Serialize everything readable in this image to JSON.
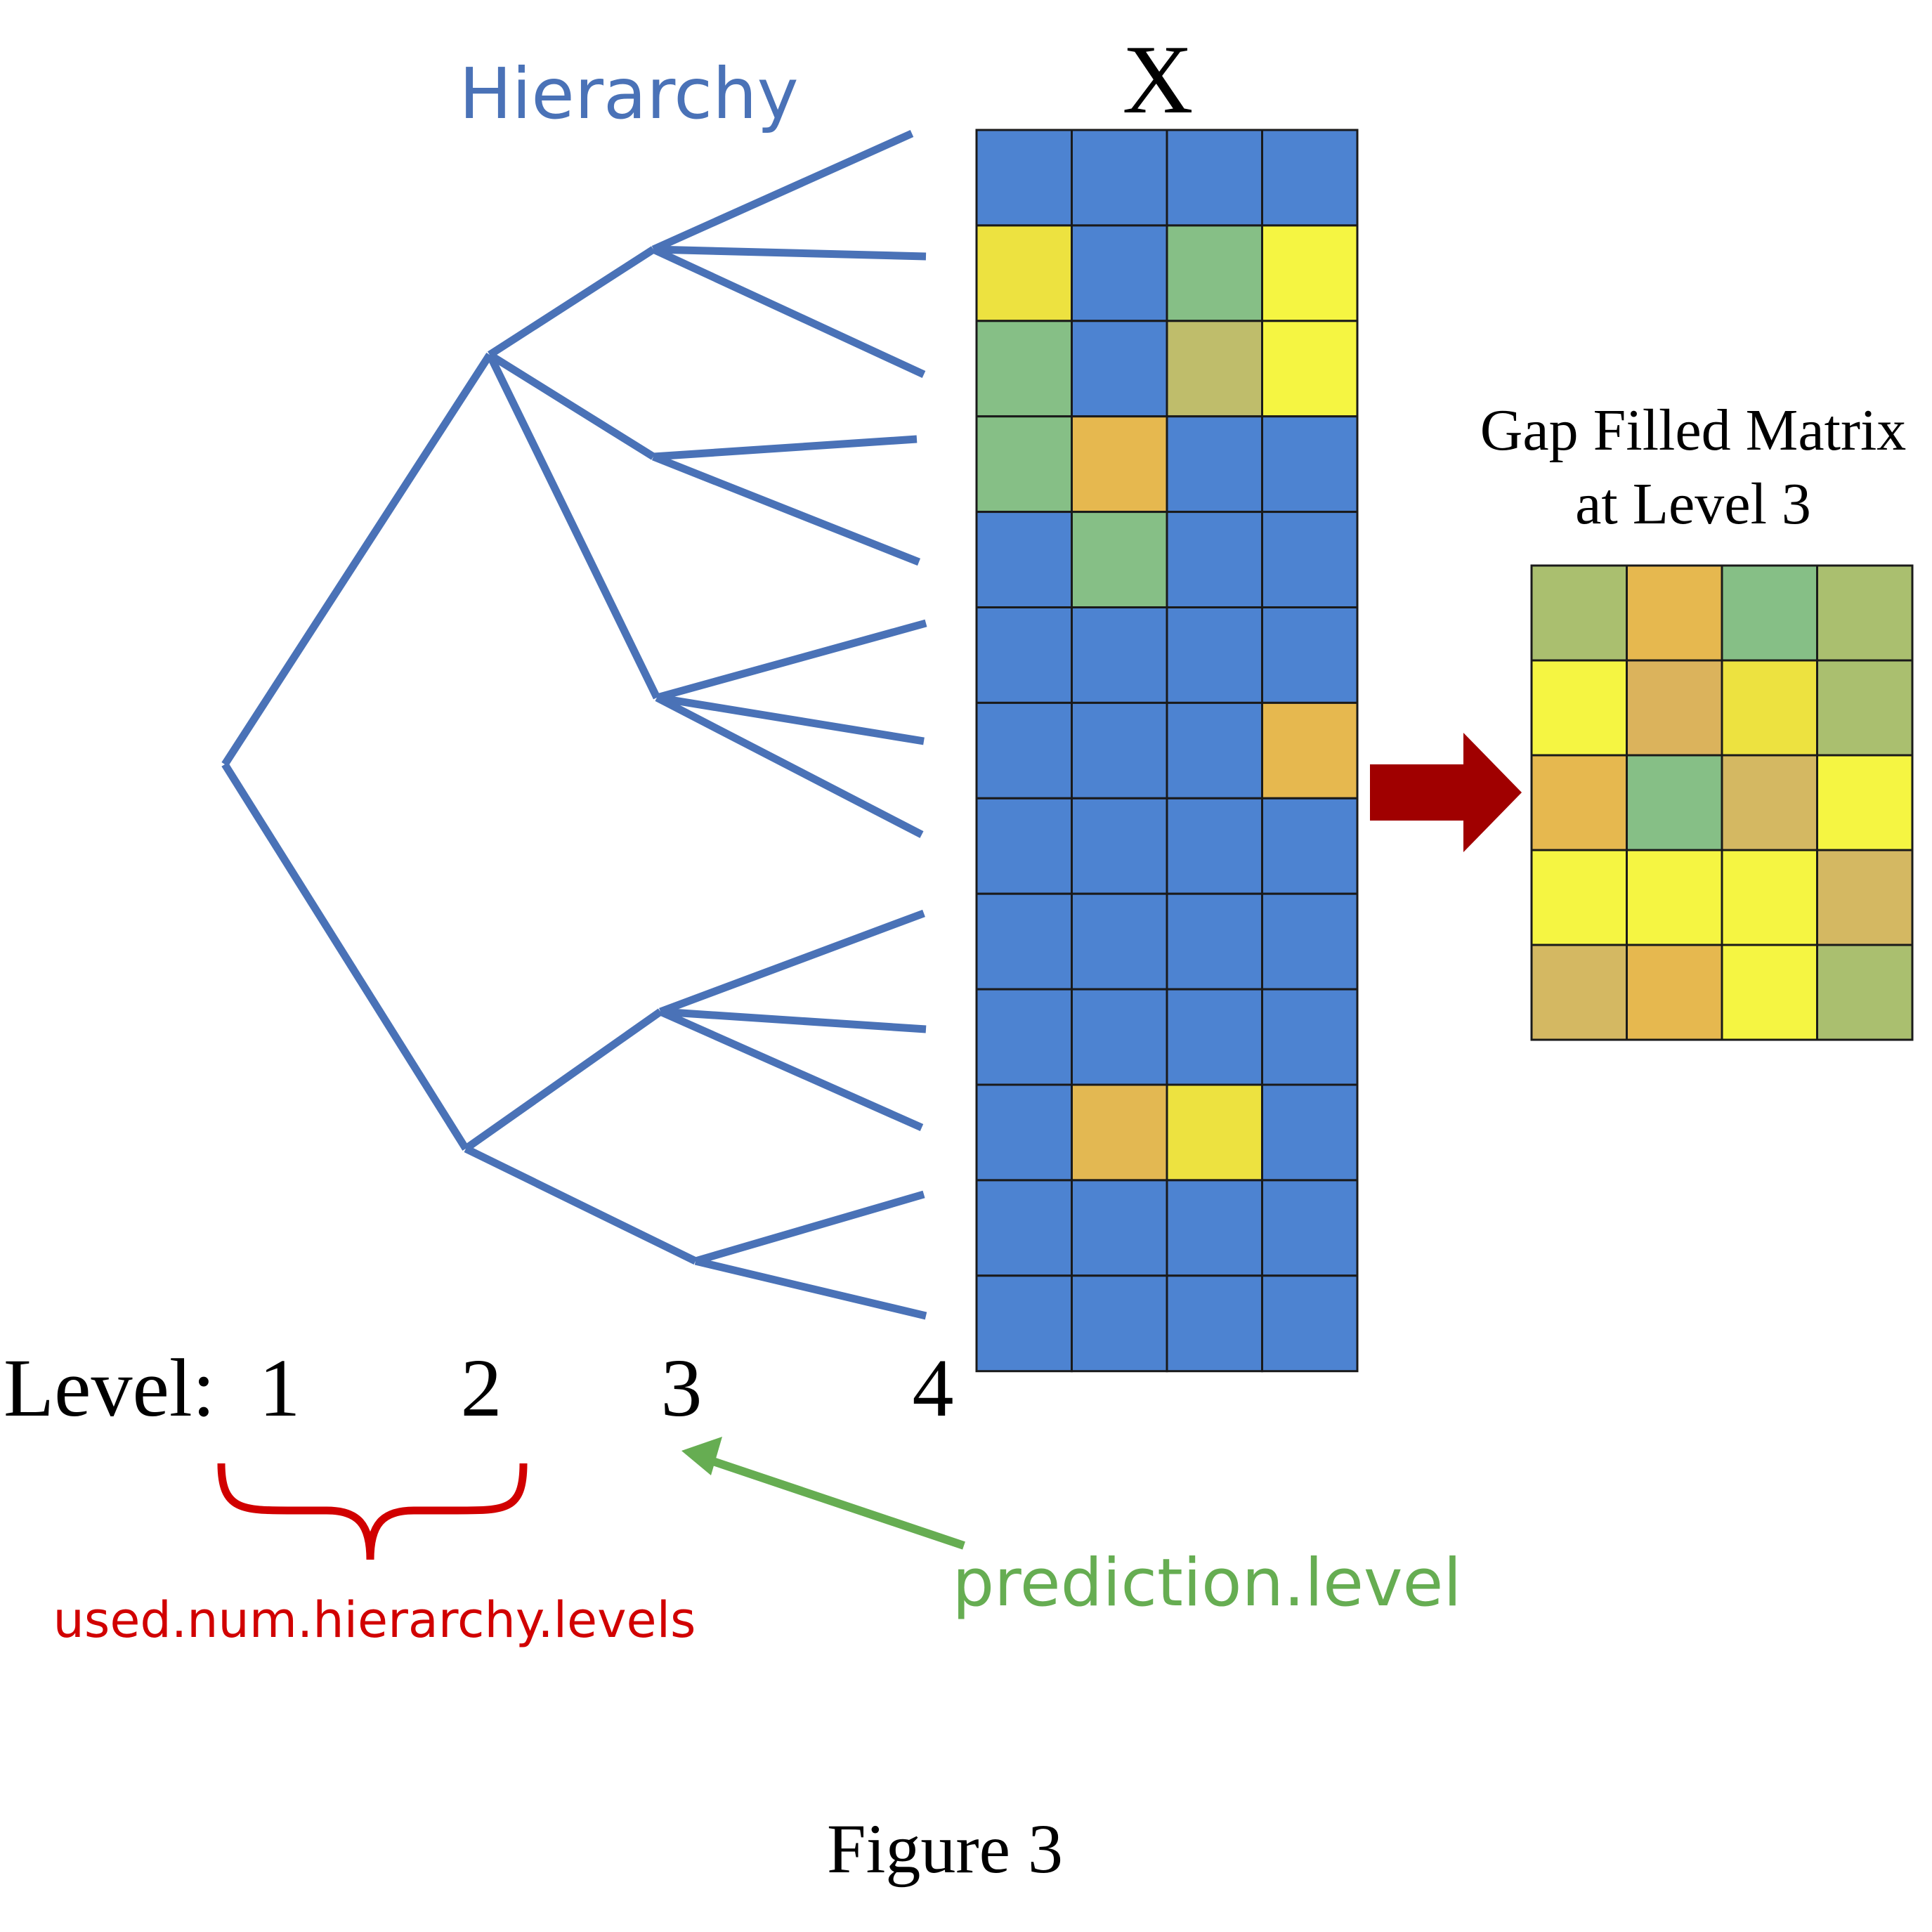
{
  "hierarchy_label": "Hierarchy",
  "matrix_label": "X",
  "gap_filled_title_line1": "Gap Filled Matrix",
  "gap_filled_title_line2": "at Level 3",
  "level_prefix": "Level:",
  "levels": [
    "1",
    "2",
    "3",
    "4"
  ],
  "used_levels_label": "used.num.hierarchy.levels",
  "prediction_level_label": "prediction.level",
  "caption": "Figure 3",
  "colors": {
    "tree": "#4a72b7",
    "hierarchy_text": "#4a72b7",
    "used_levels": "#d10000",
    "prediction": "#66ad52",
    "arrow": "#a00000",
    "cell_border": "#1a1a1a",
    "blue": "#4d83d1",
    "yellow": "#ede240",
    "bright_yellow": "#f5f542",
    "green": "#86bf86",
    "olive": "#bfbd6b",
    "orange": "#e6b84f",
    "mustard": "#e3b852",
    "tan": "#d4b862",
    "yellow_green": "#aabf6f",
    "light_orange": "#dbb35c"
  },
  "matrix_x": [
    [
      "blue",
      "blue",
      "blue",
      "blue"
    ],
    [
      "yellow",
      "blue",
      "green",
      "bright_yellow"
    ],
    [
      "green",
      "blue",
      "olive",
      "bright_yellow"
    ],
    [
      "green",
      "orange",
      "blue",
      "blue"
    ],
    [
      "blue",
      "green",
      "blue",
      "blue"
    ],
    [
      "blue",
      "blue",
      "blue",
      "blue"
    ],
    [
      "blue",
      "blue",
      "blue",
      "orange"
    ],
    [
      "blue",
      "blue",
      "blue",
      "blue"
    ],
    [
      "blue",
      "blue",
      "blue",
      "blue"
    ],
    [
      "blue",
      "blue",
      "blue",
      "blue"
    ],
    [
      "blue",
      "mustard",
      "yellow",
      "blue"
    ],
    [
      "blue",
      "blue",
      "blue",
      "blue"
    ],
    [
      "blue",
      "blue",
      "blue",
      "blue"
    ]
  ],
  "matrix_filled": [
    [
      "yellow_green",
      "orange",
      "green",
      "yellow_green"
    ],
    [
      "bright_yellow",
      "light_orange",
      "yellow",
      "yellow_green"
    ],
    [
      "orange",
      "green",
      "tan",
      "bright_yellow"
    ],
    [
      "bright_yellow",
      "bright_yellow",
      "bright_yellow",
      "tan"
    ],
    [
      "tan",
      "orange",
      "bright_yellow",
      "yellow_green"
    ]
  ]
}
